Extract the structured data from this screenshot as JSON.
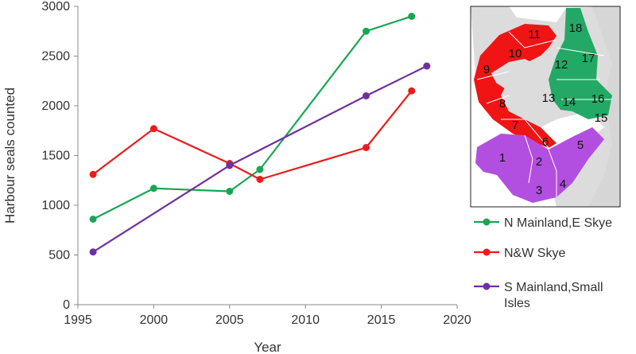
{
  "chart_data": {
    "type": "line",
    "xlabel": "Year",
    "ylabel": "Harbour seals counted",
    "xlim": [
      1995,
      2020
    ],
    "ylim": [
      0,
      3000
    ],
    "xticks": [
      1995,
      2000,
      2005,
      2010,
      2015,
      2020
    ],
    "yticks": [
      0,
      500,
      1000,
      1500,
      2000,
      2500,
      3000
    ],
    "grid": false,
    "legend_position": "right",
    "series": [
      {
        "name": "N Mainland,E Skye",
        "color": "#18a653",
        "x": [
          1996,
          2000,
          2005,
          2007,
          2014,
          2017
        ],
        "y": [
          860,
          1170,
          1140,
          1360,
          2750,
          2900
        ]
      },
      {
        "name": "N&W Skye",
        "color": "#ea1c1c",
        "x": [
          1996,
          2000,
          2005,
          2007,
          2014,
          2017
        ],
        "y": [
          1310,
          1770,
          1420,
          1260,
          1580,
          2150
        ]
      },
      {
        "name": "S Mainland,Small Isles",
        "color": "#7030a0",
        "x": [
          1996,
          2005,
          2014,
          2018
        ],
        "y": [
          530,
          1400,
          2100,
          2400
        ]
      }
    ]
  },
  "legend": {
    "items": [
      {
        "lines": [
          "N Mainland,E Skye"
        ],
        "color": "#18a653"
      },
      {
        "lines": [
          "N&W Skye"
        ],
        "color": "#ea1c1c"
      },
      {
        "lines": [
          "S Mainland,Small",
          "Isles"
        ],
        "color": "#7030a0"
      }
    ]
  },
  "map": {
    "region_colors": {
      "north_east": "#23a965",
      "north_west": "#f01414",
      "south": "#b34fe0",
      "land": "#dcdcdc"
    },
    "labels": [
      "1",
      "2",
      "3",
      "4",
      "5",
      "6",
      "7",
      "8",
      "9",
      "10",
      "11",
      "12",
      "13",
      "14",
      "15",
      "16",
      "17",
      "18"
    ]
  }
}
